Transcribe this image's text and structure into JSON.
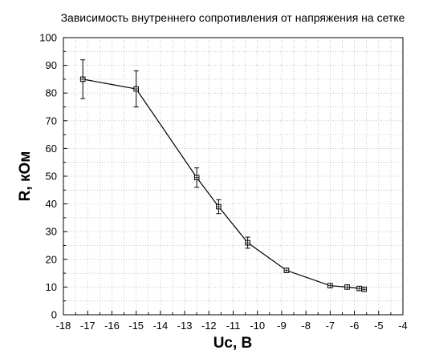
{
  "chart_data": {
    "type": "scatter",
    "title": "Зависимость внутреннего сопротивления от напряжения на сетке",
    "xlabel": "Uc, В",
    "ylabel": "R, кОм",
    "xlim": [
      -18,
      -4
    ],
    "ylim": [
      0,
      100
    ],
    "x_ticks": [
      -18,
      -17,
      -16,
      -15,
      -14,
      -13,
      -12,
      -11,
      -10,
      -9,
      -8,
      -7,
      -6,
      -5,
      -4
    ],
    "y_ticks": [
      0,
      10,
      20,
      30,
      40,
      50,
      60,
      70,
      80,
      90,
      100
    ],
    "x_tick_labels": [
      "-18",
      "-17",
      "-16",
      "-15",
      "-14",
      "-13",
      "-12",
      "-11",
      "-10",
      "-9",
      "-8",
      "-7",
      "-6",
      "-5",
      "-4"
    ],
    "y_tick_labels": [
      "0",
      "10",
      "20",
      "30",
      "40",
      "50",
      "60",
      "70",
      "80",
      "90",
      "100"
    ],
    "grid": "dotted, minor",
    "legend": "none",
    "series": [
      {
        "x": [
          -17.2,
          -15.0,
          -12.5,
          -11.6,
          -10.4,
          -8.8,
          -7.0,
          -6.3,
          -5.8,
          -5.6
        ],
        "y": [
          85.0,
          81.5,
          49.5,
          39.0,
          26.0,
          16.0,
          10.5,
          10.0,
          9.5,
          9.2
        ],
        "err": [
          7.0,
          6.5,
          3.5,
          2.5,
          2.0,
          1.0,
          0.6,
          0.5,
          0.5,
          0.4
        ],
        "marker": "square-with-cross",
        "color": "#000000"
      }
    ]
  }
}
